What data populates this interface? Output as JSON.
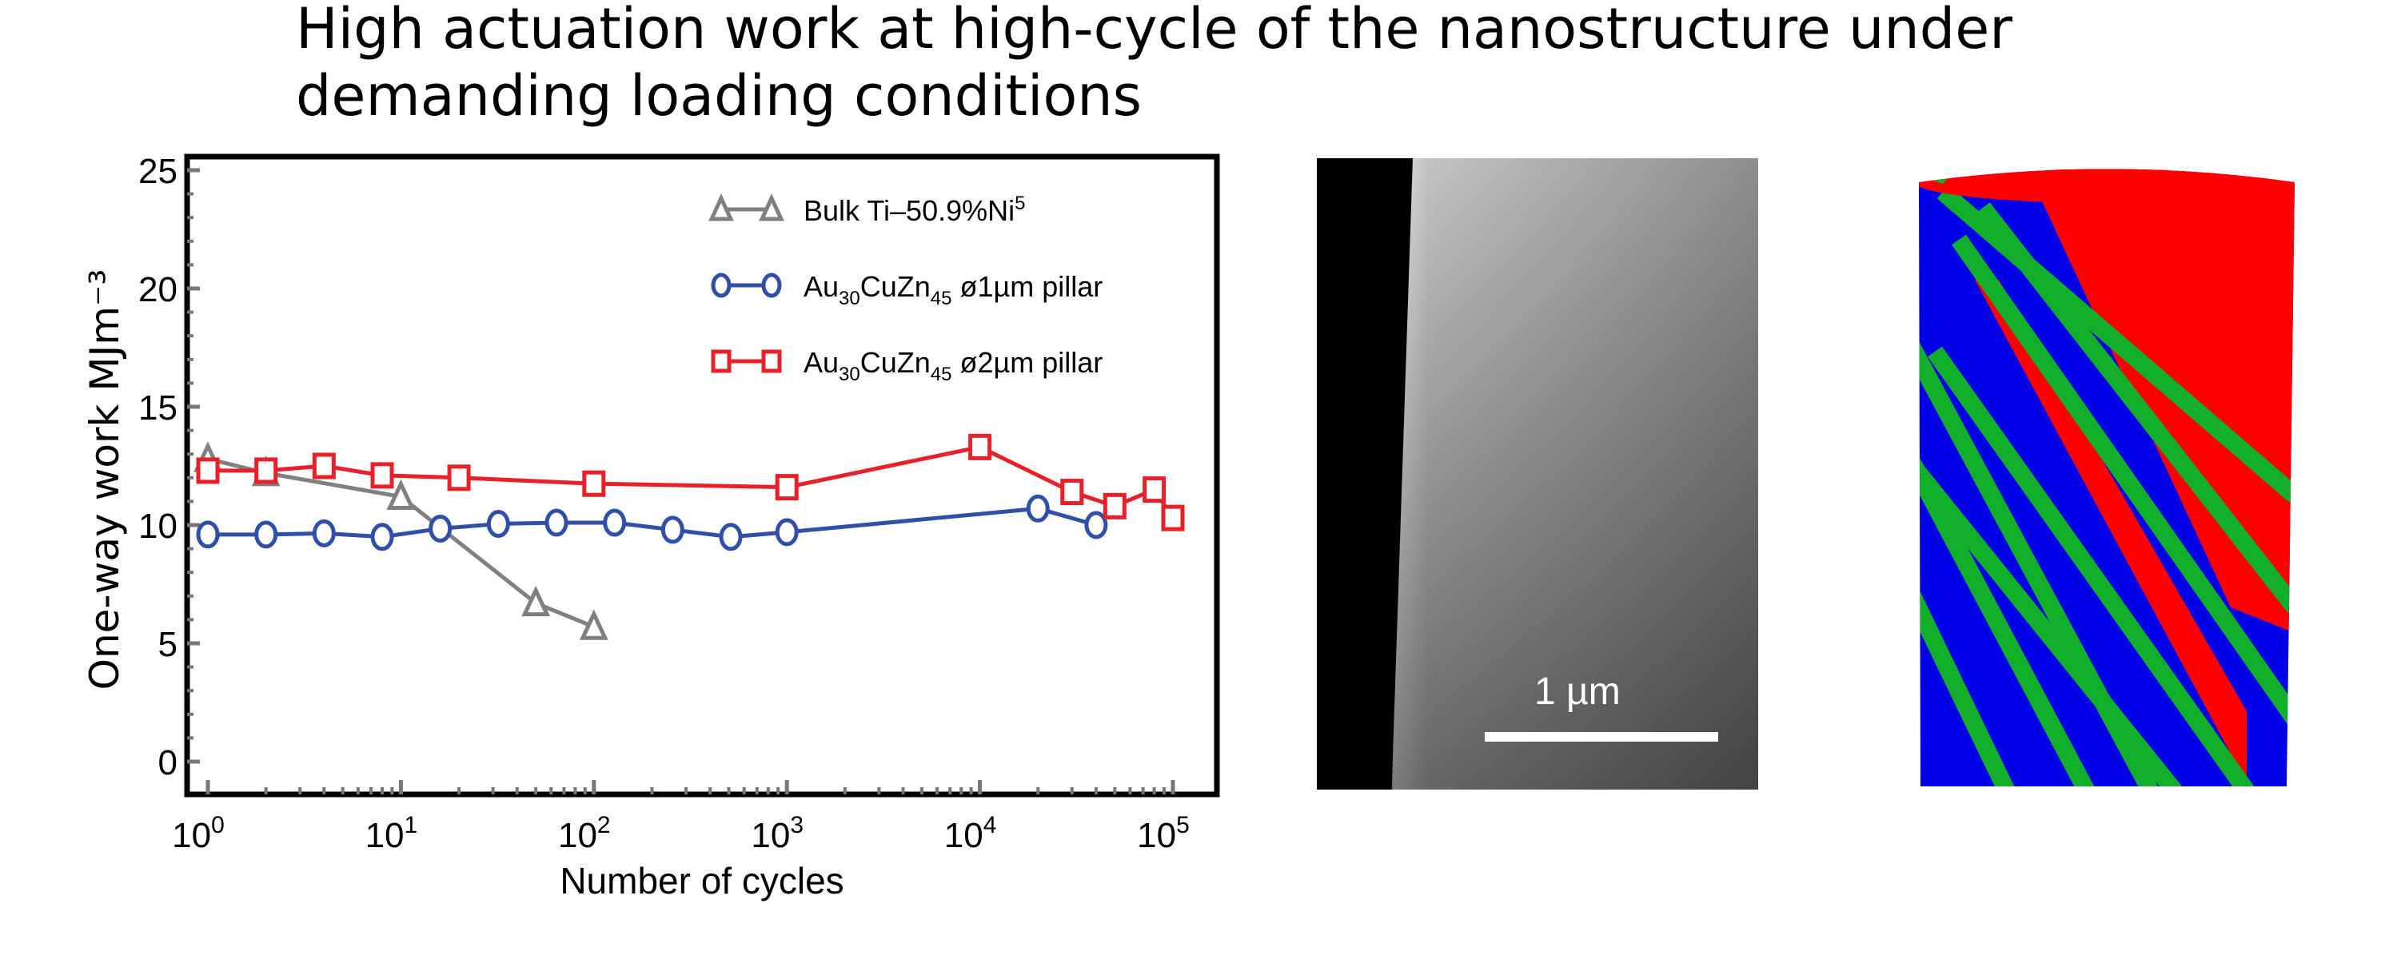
{
  "title": "High actuation work at high-cycle of the nanostructure under demanding loading conditions",
  "sem_image": {
    "scale_label": "1 µm"
  },
  "colors": {
    "gray": "#808080",
    "blue": "#2f4fa8",
    "red": "#e8202a"
  },
  "chart_data": {
    "type": "line",
    "xlabel": "Number of cycles",
    "ylabel": "One-way work MJm⁻³",
    "xscale": "log",
    "xlim": [
      0.8,
      140000
    ],
    "ylim": [
      -1.2,
      25.3
    ],
    "xticks": [
      {
        "v": 1,
        "label": "10",
        "exp": "0"
      },
      {
        "v": 10,
        "label": "10",
        "exp": "1"
      },
      {
        "v": 100,
        "label": "10",
        "exp": "2"
      },
      {
        "v": 1000,
        "label": "10",
        "exp": "3"
      },
      {
        "v": 10000,
        "label": "10",
        "exp": "4"
      },
      {
        "v": 100000,
        "label": "10",
        "exp": "5"
      }
    ],
    "yticks": [
      0,
      5,
      10,
      15,
      20,
      25
    ],
    "legend_position": "top-right",
    "series": [
      {
        "name": "Bulk Ti–50.9%Ni",
        "sup": "5",
        "marker": "triangle",
        "color": "#808080",
        "x": [
          1,
          2,
          10,
          50,
          100
        ],
        "y": [
          12.8,
          12.2,
          11.2,
          6.7,
          5.7
        ]
      },
      {
        "name": "Au30CuZn45 ø1µm pillar",
        "label_main": "Au",
        "sub1": "30",
        "mid": "CuZn",
        "sub2": "45",
        "tail": " ø1µm pillar",
        "marker": "circle",
        "color": "#2f4fa8",
        "x": [
          1,
          2,
          4,
          8,
          16,
          32,
          64,
          128,
          256,
          512,
          1000,
          20000,
          40000
        ],
        "y": [
          9.6,
          9.6,
          9.65,
          9.5,
          9.85,
          10.05,
          10.1,
          10.1,
          9.8,
          9.5,
          9.7,
          10.7,
          10.0
        ]
      },
      {
        "name": "Au30CuZn45 ø2µm pillar",
        "label_main": "Au",
        "sub1": "30",
        "mid": "CuZn",
        "sub2": "45",
        "tail": " ø2µm pillar",
        "marker": "square",
        "color": "#e8202a",
        "x": [
          1,
          2,
          4,
          8,
          20,
          100,
          1000,
          10000,
          30000,
          50000,
          80000,
          100000
        ],
        "y": [
          12.3,
          12.3,
          12.5,
          12.1,
          12.0,
          11.75,
          11.6,
          13.3,
          11.4,
          10.8,
          11.5,
          10.3
        ]
      }
    ]
  }
}
